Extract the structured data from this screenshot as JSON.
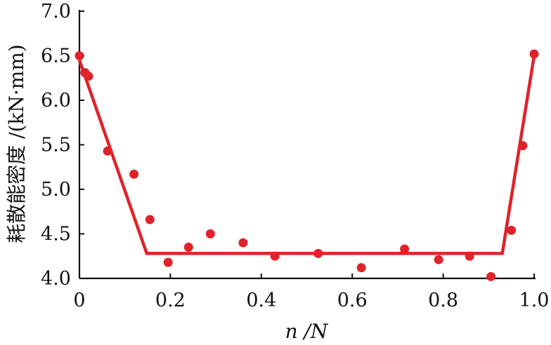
{
  "chart_data": {
    "type": "scatter",
    "title": "",
    "xlabel": "n /N",
    "ylabel": "耗散能密度 /(kN·mm)",
    "xlim": [
      0,
      1.0
    ],
    "ylim": [
      4.0,
      7.0
    ],
    "x_ticks": [
      "0",
      "0.2",
      "0.4",
      "0.6",
      "0.8",
      "1.0"
    ],
    "y_ticks": [
      "4.0",
      "4.5",
      "5.0",
      "5.5",
      "6.0",
      "6.5",
      "7.0"
    ],
    "grid": false,
    "legend": "none",
    "color": "#e0222a",
    "series": [
      {
        "mode": "markers",
        "x": [
          0.0,
          0.012,
          0.02,
          0.062,
          0.12,
          0.155,
          0.195,
          0.24,
          0.288,
          0.36,
          0.43,
          0.525,
          0.62,
          0.715,
          0.79,
          0.858,
          0.905,
          0.95,
          0.975,
          1.0
        ],
        "y": [
          6.5,
          6.31,
          6.27,
          5.43,
          5.17,
          4.66,
          4.18,
          4.35,
          4.5,
          4.4,
          4.25,
          4.28,
          4.12,
          4.33,
          4.21,
          4.25,
          4.02,
          4.54,
          5.49,
          6.52
        ]
      },
      {
        "mode": "lines",
        "x": [
          0.0,
          0.148,
          0.93,
          1.0
        ],
        "y": [
          6.45,
          4.28,
          4.28,
          6.5
        ]
      }
    ]
  }
}
